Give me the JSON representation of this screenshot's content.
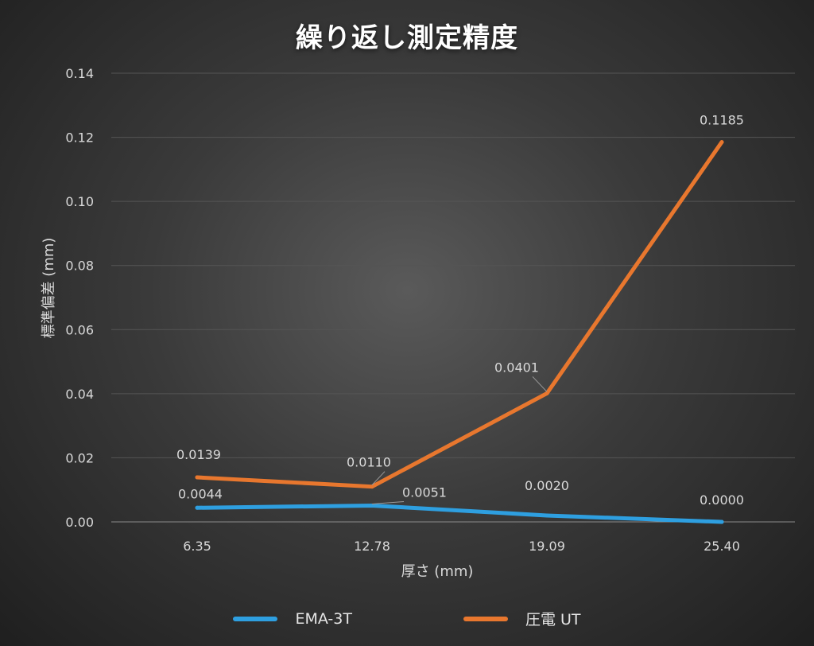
{
  "chart_data": {
    "type": "line",
    "title": "繰り返し測定精度",
    "xlabel": "厚さ (mm)",
    "ylabel": "標準偏差 (mm)",
    "categories": [
      "6.35",
      "12.78",
      "19.09",
      "25.40"
    ],
    "ylim": [
      0,
      0.14
    ],
    "yticks": [
      "0.00",
      "0.02",
      "0.04",
      "0.06",
      "0.08",
      "0.10",
      "0.12",
      "0.14"
    ],
    "grid": true,
    "legend_position": "bottom",
    "series": [
      {
        "name": "EMA-3T",
        "color": "#2e9fe0",
        "values": [
          0.0044,
          0.0051,
          0.002,
          0.0
        ],
        "labels": [
          "0.0044",
          "0.0051",
          "0.0020",
          "0.0000"
        ]
      },
      {
        "name": "圧電 UT",
        "color": "#e8772e",
        "values": [
          0.0139,
          0.011,
          0.0401,
          0.1185
        ],
        "labels": [
          "0.0139",
          "0.0110",
          "0.0401",
          "0.1185"
        ]
      }
    ]
  }
}
